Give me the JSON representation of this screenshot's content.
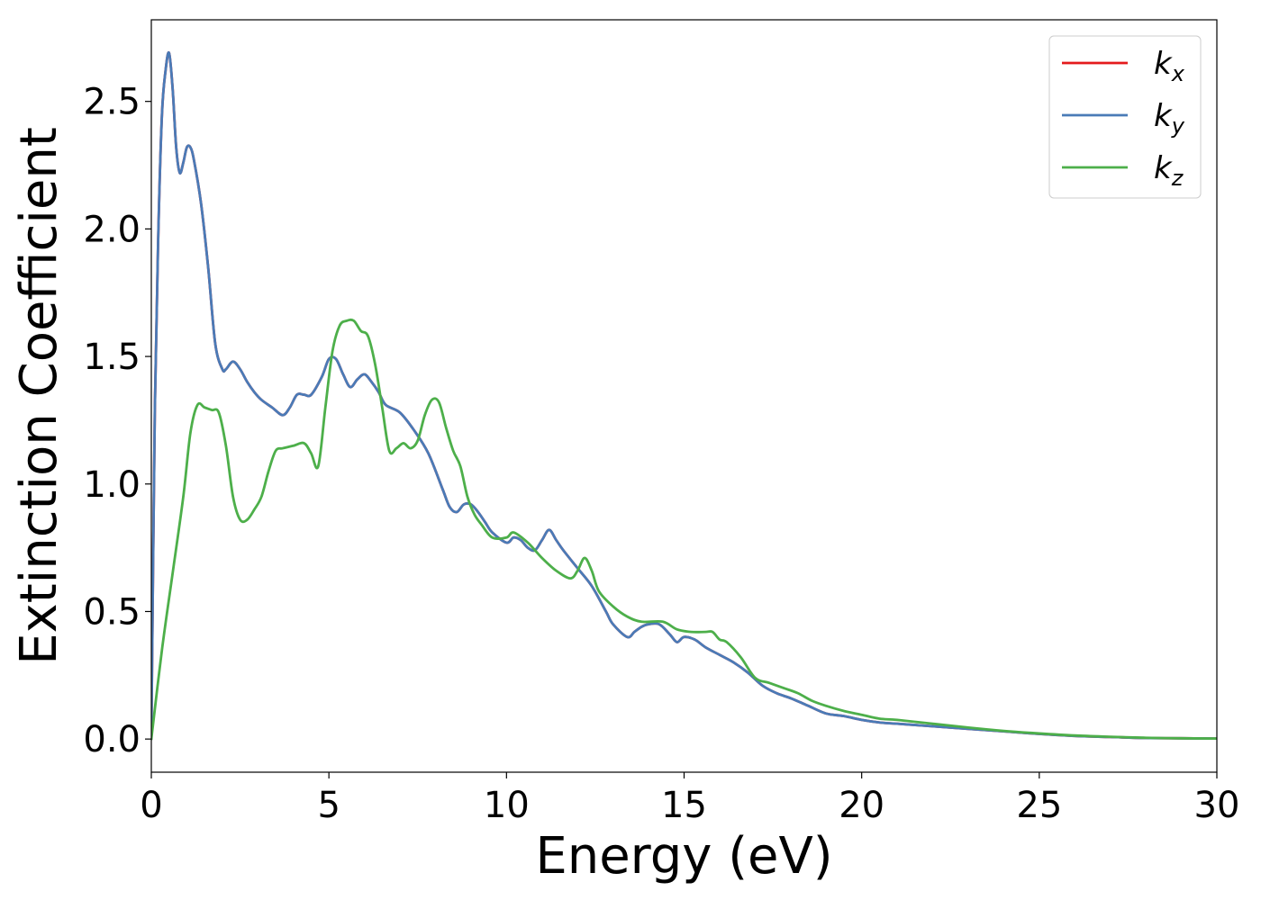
{
  "chart_data": {
    "type": "line",
    "title": "",
    "xlabel": "Energy (eV)",
    "ylabel": "Extinction Coefficient",
    "xlim": [
      0,
      30
    ],
    "ylim": [
      -0.13,
      2.82
    ],
    "xticks": [
      "0",
      "5",
      "10",
      "15",
      "20",
      "25",
      "30"
    ],
    "yticks": [
      "0.0",
      "0.5",
      "1.0",
      "1.5",
      "2.0",
      "2.5"
    ],
    "grid": false,
    "legend_position": "top-right",
    "series": [
      {
        "name": "k",
        "subscript": "x",
        "color": "#e41a1c",
        "x": [
          0,
          0.1,
          0.2,
          0.3,
          0.4,
          0.5,
          0.6,
          0.7,
          0.8,
          0.9,
          1.0,
          1.1,
          1.2,
          1.4,
          1.6,
          1.8,
          2.0,
          2.1,
          2.3,
          2.5,
          2.7,
          2.9,
          3.1,
          3.4,
          3.7,
          3.9,
          4.1,
          4.3,
          4.5,
          4.8,
          5.0,
          5.2,
          5.4,
          5.6,
          5.8,
          6.0,
          6.2,
          6.4,
          6.6,
          7.0,
          7.4,
          7.8,
          8.2,
          8.4,
          8.6,
          8.8,
          9.0,
          9.2,
          9.4,
          9.6,
          10.0,
          10.2,
          10.4,
          10.6,
          10.8,
          11.0,
          11.2,
          11.4,
          11.6,
          12.0,
          12.4,
          12.8,
          13.0,
          13.4,
          13.6,
          13.8,
          14.0,
          14.3,
          14.6,
          14.8,
          15.0,
          15.3,
          15.6,
          16.0,
          16.4,
          16.8,
          17.2,
          17.6,
          18.0,
          18.5,
          19.0,
          19.5,
          20.0,
          20.5,
          21.0,
          21.5,
          22.0,
          23.0,
          24.0,
          25.0,
          26.0,
          27.0,
          28.0,
          29.0,
          30.0
        ],
        "values": [
          0.0,
          1.3,
          2.0,
          2.45,
          2.62,
          2.69,
          2.55,
          2.32,
          2.22,
          2.26,
          2.32,
          2.32,
          2.27,
          2.1,
          1.85,
          1.55,
          1.45,
          1.45,
          1.48,
          1.45,
          1.4,
          1.36,
          1.33,
          1.3,
          1.27,
          1.3,
          1.35,
          1.35,
          1.35,
          1.42,
          1.49,
          1.49,
          1.43,
          1.38,
          1.41,
          1.43,
          1.4,
          1.36,
          1.31,
          1.28,
          1.21,
          1.12,
          0.98,
          0.91,
          0.89,
          0.92,
          0.92,
          0.89,
          0.85,
          0.81,
          0.77,
          0.79,
          0.78,
          0.75,
          0.74,
          0.78,
          0.82,
          0.78,
          0.74,
          0.67,
          0.6,
          0.5,
          0.45,
          0.4,
          0.42,
          0.44,
          0.45,
          0.45,
          0.41,
          0.38,
          0.4,
          0.39,
          0.36,
          0.33,
          0.3,
          0.26,
          0.21,
          0.18,
          0.16,
          0.13,
          0.1,
          0.09,
          0.075,
          0.065,
          0.06,
          0.055,
          0.05,
          0.04,
          0.03,
          0.02,
          0.012,
          0.008,
          0.004,
          0.003,
          0.002
        ]
      },
      {
        "name": "k",
        "subscript": "y",
        "color": "#4a7bb7",
        "x": [
          0,
          0.1,
          0.2,
          0.3,
          0.4,
          0.5,
          0.6,
          0.7,
          0.8,
          0.9,
          1.0,
          1.1,
          1.2,
          1.4,
          1.6,
          1.8,
          2.0,
          2.1,
          2.3,
          2.5,
          2.7,
          2.9,
          3.1,
          3.4,
          3.7,
          3.9,
          4.1,
          4.3,
          4.5,
          4.8,
          5.0,
          5.2,
          5.4,
          5.6,
          5.8,
          6.0,
          6.2,
          6.4,
          6.6,
          7.0,
          7.4,
          7.8,
          8.2,
          8.4,
          8.6,
          8.8,
          9.0,
          9.2,
          9.4,
          9.6,
          10.0,
          10.2,
          10.4,
          10.6,
          10.8,
          11.0,
          11.2,
          11.4,
          11.6,
          12.0,
          12.4,
          12.8,
          13.0,
          13.4,
          13.6,
          13.8,
          14.0,
          14.3,
          14.6,
          14.8,
          15.0,
          15.3,
          15.6,
          16.0,
          16.4,
          16.8,
          17.2,
          17.6,
          18.0,
          18.5,
          19.0,
          19.5,
          20.0,
          20.5,
          21.0,
          21.5,
          22.0,
          23.0,
          24.0,
          25.0,
          26.0,
          27.0,
          28.0,
          29.0,
          30.0
        ],
        "values": [
          0.0,
          1.3,
          2.0,
          2.45,
          2.62,
          2.69,
          2.55,
          2.32,
          2.22,
          2.26,
          2.32,
          2.32,
          2.27,
          2.1,
          1.85,
          1.55,
          1.45,
          1.45,
          1.48,
          1.45,
          1.4,
          1.36,
          1.33,
          1.3,
          1.27,
          1.3,
          1.35,
          1.35,
          1.35,
          1.42,
          1.49,
          1.49,
          1.43,
          1.38,
          1.41,
          1.43,
          1.4,
          1.36,
          1.31,
          1.28,
          1.21,
          1.12,
          0.98,
          0.91,
          0.89,
          0.92,
          0.92,
          0.89,
          0.85,
          0.81,
          0.77,
          0.79,
          0.78,
          0.75,
          0.74,
          0.78,
          0.82,
          0.78,
          0.74,
          0.67,
          0.6,
          0.5,
          0.45,
          0.4,
          0.42,
          0.44,
          0.45,
          0.45,
          0.41,
          0.38,
          0.4,
          0.39,
          0.36,
          0.33,
          0.3,
          0.26,
          0.21,
          0.18,
          0.16,
          0.13,
          0.1,
          0.09,
          0.075,
          0.065,
          0.06,
          0.055,
          0.05,
          0.04,
          0.03,
          0.02,
          0.012,
          0.008,
          0.004,
          0.003,
          0.002
        ]
      },
      {
        "name": "k",
        "subscript": "z",
        "color": "#4daf4a",
        "x": [
          0,
          0.3,
          0.6,
          0.9,
          1.1,
          1.3,
          1.5,
          1.7,
          1.9,
          2.1,
          2.3,
          2.5,
          2.7,
          2.9,
          3.1,
          3.3,
          3.5,
          3.7,
          4.0,
          4.3,
          4.5,
          4.7,
          4.9,
          5.1,
          5.3,
          5.5,
          5.7,
          5.9,
          6.1,
          6.3,
          6.5,
          6.7,
          6.9,
          7.1,
          7.3,
          7.5,
          7.7,
          7.9,
          8.1,
          8.3,
          8.5,
          8.7,
          8.9,
          9.1,
          9.3,
          9.6,
          10.0,
          10.2,
          10.6,
          11.0,
          11.4,
          11.8,
          12.0,
          12.2,
          12.4,
          12.6,
          13.0,
          13.4,
          13.8,
          14.4,
          14.8,
          15.2,
          15.6,
          15.8,
          16.0,
          16.2,
          16.6,
          17.0,
          17.4,
          17.8,
          18.2,
          18.6,
          19.0,
          19.5,
          20.0,
          20.5,
          21.0,
          22.0,
          23.0,
          24.0,
          25.0,
          26.0,
          27.0,
          28.0,
          29.0,
          30.0
        ],
        "values": [
          0.0,
          0.35,
          0.65,
          0.95,
          1.2,
          1.31,
          1.3,
          1.29,
          1.28,
          1.15,
          0.95,
          0.86,
          0.86,
          0.9,
          0.95,
          1.05,
          1.13,
          1.14,
          1.15,
          1.16,
          1.12,
          1.07,
          1.3,
          1.52,
          1.62,
          1.64,
          1.64,
          1.6,
          1.58,
          1.47,
          1.3,
          1.13,
          1.14,
          1.16,
          1.14,
          1.17,
          1.27,
          1.33,
          1.32,
          1.22,
          1.13,
          1.07,
          0.95,
          0.88,
          0.84,
          0.79,
          0.79,
          0.81,
          0.77,
          0.71,
          0.66,
          0.63,
          0.66,
          0.71,
          0.66,
          0.58,
          0.52,
          0.48,
          0.46,
          0.46,
          0.43,
          0.42,
          0.42,
          0.42,
          0.39,
          0.38,
          0.32,
          0.24,
          0.22,
          0.2,
          0.18,
          0.15,
          0.13,
          0.11,
          0.095,
          0.08,
          0.075,
          0.06,
          0.045,
          0.032,
          0.022,
          0.014,
          0.009,
          0.005,
          0.003,
          0.002
        ]
      }
    ]
  }
}
